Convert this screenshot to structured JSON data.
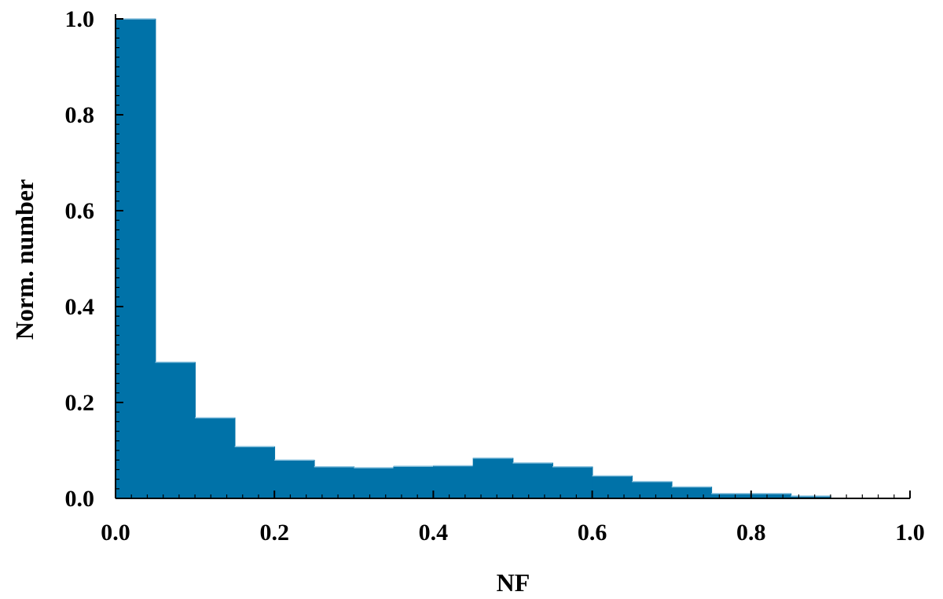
{
  "chart_data": {
    "type": "bar",
    "title": "",
    "xlabel": "NF",
    "ylabel": "Norm. number",
    "xlim": [
      0.0,
      1.0
    ],
    "ylim": [
      0.0,
      1.0
    ],
    "bin_width": 0.05,
    "bins": [
      {
        "x0": 0.0,
        "x1": 0.05,
        "value": 1.0
      },
      {
        "x0": 0.05,
        "x1": 0.1,
        "value": 0.284
      },
      {
        "x0": 0.1,
        "x1": 0.15,
        "value": 0.168
      },
      {
        "x0": 0.15,
        "x1": 0.2,
        "value": 0.108
      },
      {
        "x0": 0.2,
        "x1": 0.25,
        "value": 0.08
      },
      {
        "x0": 0.25,
        "x1": 0.3,
        "value": 0.066
      },
      {
        "x0": 0.3,
        "x1": 0.35,
        "value": 0.064
      },
      {
        "x0": 0.35,
        "x1": 0.4,
        "value": 0.067
      },
      {
        "x0": 0.4,
        "x1": 0.45,
        "value": 0.068
      },
      {
        "x0": 0.45,
        "x1": 0.5,
        "value": 0.084
      },
      {
        "x0": 0.5,
        "x1": 0.55,
        "value": 0.074
      },
      {
        "x0": 0.55,
        "x1": 0.6,
        "value": 0.066
      },
      {
        "x0": 0.6,
        "x1": 0.65,
        "value": 0.047
      },
      {
        "x0": 0.65,
        "x1": 0.7,
        "value": 0.035
      },
      {
        "x0": 0.7,
        "x1": 0.75,
        "value": 0.024
      },
      {
        "x0": 0.75,
        "x1": 0.8,
        "value": 0.01
      },
      {
        "x0": 0.8,
        "x1": 0.85,
        "value": 0.01
      },
      {
        "x0": 0.85,
        "x1": 0.9,
        "value": 0.005
      }
    ],
    "x_ticks": [
      "0.0",
      "0.2",
      "0.4",
      "0.6",
      "0.8",
      "1.0"
    ],
    "y_ticks": [
      "0.0",
      "0.2",
      "0.4",
      "0.6",
      "0.8",
      "1.0"
    ],
    "bar_color": "#0072a8",
    "grid": false,
    "legend": false
  }
}
